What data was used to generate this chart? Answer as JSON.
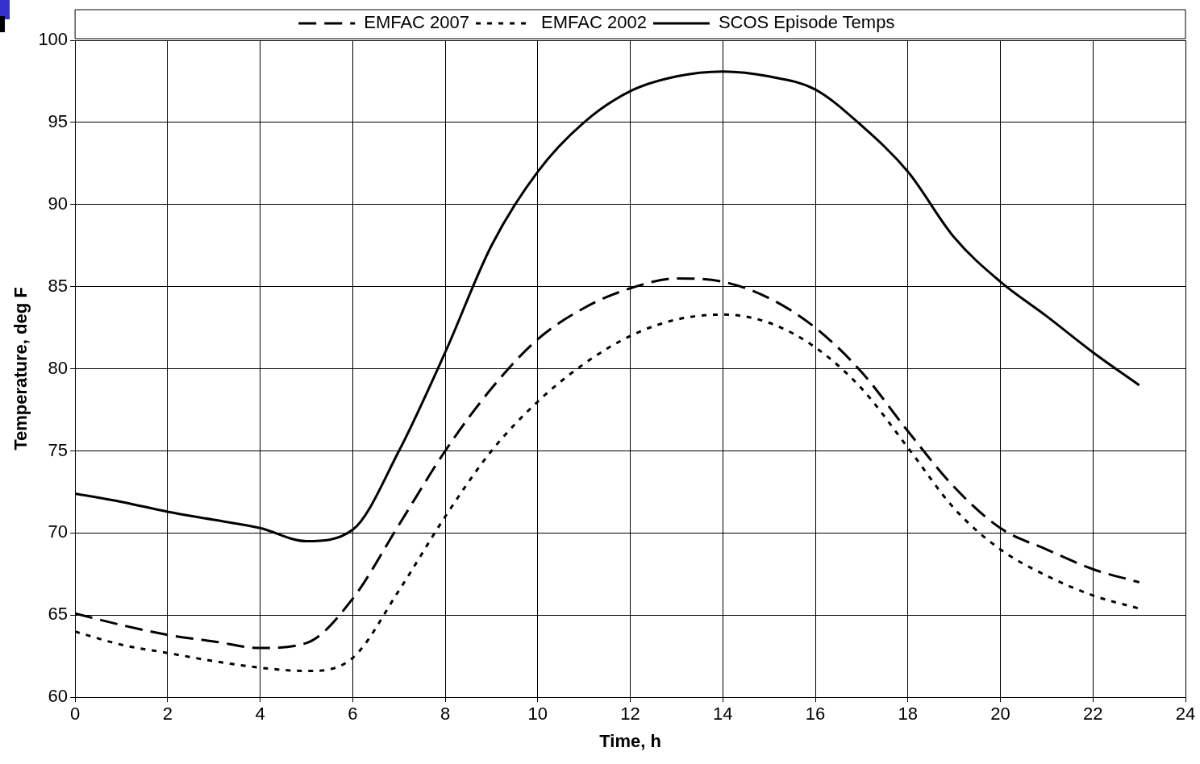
{
  "chart_data": {
    "type": "line",
    "xlabel": "Time, h",
    "ylabel": "Temperature, deg F",
    "x": [
      0,
      1,
      2,
      3,
      4,
      5,
      6,
      7,
      8,
      9,
      10,
      11,
      12,
      13,
      14,
      15,
      16,
      17,
      18,
      19,
      20,
      21,
      22,
      23
    ],
    "series": [
      {
        "name": "EMFAC 2007",
        "color": "#000000",
        "line_style": "dashed",
        "values": [
          65.1,
          64.4,
          63.8,
          63.4,
          63,
          63.3,
          66,
          70.5,
          75,
          78.8,
          81.8,
          83.7,
          84.9,
          85.5,
          85.3,
          84.3,
          82.5,
          79.8,
          76.2,
          72.8,
          70.3,
          69,
          67.8,
          67
        ]
      },
      {
        "name": "EMFAC 2002",
        "color": "#000000",
        "line_style": "dotted",
        "values": [
          64,
          63.2,
          62.7,
          62.2,
          61.8,
          61.6,
          62.4,
          66.5,
          71,
          75,
          78,
          80.3,
          82,
          83,
          83.3,
          82.8,
          81.3,
          78.8,
          75.2,
          71.5,
          69,
          67.4,
          66.2,
          65.4
        ]
      },
      {
        "name": "SCOS Episode Temps",
        "color": "#000000",
        "line_style": "solid",
        "values": [
          72.4,
          71.9,
          71.3,
          70.8,
          70.3,
          69.5,
          70.2,
          75,
          81,
          87.5,
          92,
          95,
          96.9,
          97.8,
          98.1,
          97.8,
          97,
          94.8,
          92,
          88,
          85.3,
          83.2,
          81,
          79
        ]
      }
    ],
    "xlim": [
      0,
      24
    ],
    "xticks": [
      0,
      2,
      4,
      6,
      8,
      10,
      12,
      14,
      16,
      18,
      20,
      22,
      24
    ],
    "ylim": [
      60,
      100
    ],
    "yticks": [
      60,
      65,
      70,
      75,
      80,
      85,
      90,
      95,
      100
    ],
    "grid": true,
    "legend": "top",
    "marker": "none"
  }
}
